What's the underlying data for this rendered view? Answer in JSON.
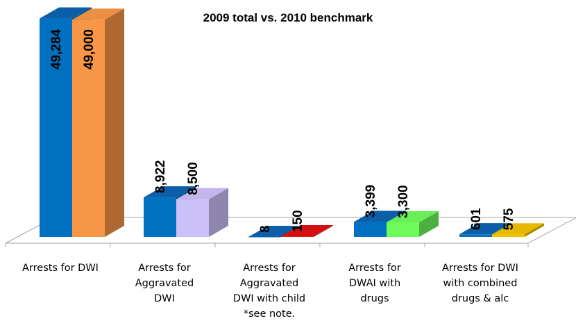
{
  "chart_data": {
    "type": "bar",
    "title": "2009 total vs. 2010 benchmark",
    "xlabel": "",
    "ylabel": "",
    "categories": [
      [
        "Arrests for DWI"
      ],
      [
        "Arrests for",
        "Aggravated",
        "DWI"
      ],
      [
        "Arrests for",
        "Aggravated",
        "DWI with child",
        "*see note."
      ],
      [
        "Arrests for",
        "DWAI with",
        "drugs"
      ],
      [
        "Arrests for DWI",
        "with combined",
        "drugs & alc"
      ]
    ],
    "series": [
      {
        "values": [
          49284,
          8922,
          8,
          3399,
          601
        ],
        "labels": [
          "49,284",
          "8,922",
          "8",
          "3,399",
          "601"
        ]
      },
      {
        "values": [
          49000,
          8500,
          150,
          3300,
          575
        ],
        "labels": [
          "49,000",
          "8,500",
          "150",
          "3,300",
          "575"
        ]
      }
    ],
    "colors": {
      "series1": [
        "#0070c0",
        "#0070c0",
        "#0070c0",
        "#0070c0",
        "#0070c0"
      ],
      "series2": [
        "#f79646",
        "#ccc0f8",
        "#e01010",
        "#6dfc5c",
        "#f2c200"
      ]
    },
    "ylim": [
      0,
      50000
    ],
    "legend": "none",
    "grid": false,
    "data_labels": "rotated-vertical"
  }
}
